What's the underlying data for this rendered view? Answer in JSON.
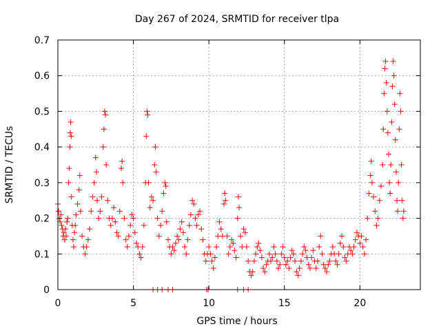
{
  "chart_data": {
    "type": "scatter",
    "title": "Day 267 of 2024, SRMTID for receiver tlpa",
    "xlabel": "GPS time / hours",
    "ylabel": "SRMTID / TECUs",
    "xlim": [
      0,
      24
    ],
    "ylim": [
      0,
      0.7
    ],
    "x_ticks": [
      0,
      5,
      10,
      15,
      20
    ],
    "x_tick_labels": [
      "0",
      "5",
      "10",
      "15",
      "20"
    ],
    "y_ticks": [
      0,
      0.1,
      0.2,
      0.3,
      0.4,
      0.5,
      0.6,
      0.7
    ],
    "y_tick_labels": [
      "0",
      "0.1",
      "0.2",
      "0.3",
      "0.4",
      "0.5",
      "0.6",
      "0.7"
    ],
    "grid": true,
    "marker": "+",
    "colors": {
      "points": "#ee0000",
      "grid": "#a0a0a0",
      "axes": "#000000"
    },
    "series": [
      {
        "name": "SRMTID",
        "points": [
          [
            0.0,
            0.24
          ],
          [
            0.05,
            0.22
          ],
          [
            0.1,
            0.2
          ],
          [
            0.15,
            0.19
          ],
          [
            0.2,
            0.21
          ],
          [
            0.25,
            0.18
          ],
          [
            0.3,
            0.17
          ],
          [
            0.35,
            0.15
          ],
          [
            0.4,
            0.16
          ],
          [
            0.45,
            0.14
          ],
          [
            0.5,
            0.17
          ],
          [
            0.55,
            0.15
          ],
          [
            0.6,
            0.19
          ],
          [
            0.65,
            0.2
          ],
          [
            0.7,
            0.3
          ],
          [
            0.75,
            0.34
          ],
          [
            0.8,
            0.4
          ],
          [
            0.82,
            0.44
          ],
          [
            0.85,
            0.47
          ],
          [
            0.88,
            0.43
          ],
          [
            0.9,
            0.26
          ],
          [
            0.95,
            0.18
          ],
          [
            1.0,
            0.14
          ],
          [
            1.05,
            0.12
          ],
          [
            1.1,
            0.16
          ],
          [
            1.15,
            0.18
          ],
          [
            1.2,
            0.21
          ],
          [
            1.3,
            0.24
          ],
          [
            1.4,
            0.28
          ],
          [
            1.45,
            0.32
          ],
          [
            1.5,
            0.22
          ],
          [
            1.6,
            0.15
          ],
          [
            1.7,
            0.12
          ],
          [
            1.8,
            0.1
          ],
          [
            1.9,
            0.12
          ],
          [
            2.0,
            0.14
          ],
          [
            2.1,
            0.17
          ],
          [
            2.2,
            0.22
          ],
          [
            2.3,
            0.26
          ],
          [
            2.4,
            0.3
          ],
          [
            2.5,
            0.37
          ],
          [
            2.55,
            0.33
          ],
          [
            2.6,
            0.25
          ],
          [
            2.7,
            0.2
          ],
          [
            2.8,
            0.22
          ],
          [
            2.9,
            0.26
          ],
          [
            3.0,
            0.4
          ],
          [
            3.05,
            0.45
          ],
          [
            3.1,
            0.5
          ],
          [
            3.15,
            0.49
          ],
          [
            3.2,
            0.35
          ],
          [
            3.3,
            0.25
          ],
          [
            3.4,
            0.2
          ],
          [
            3.5,
            0.18
          ],
          [
            3.6,
            0.2
          ],
          [
            3.7,
            0.23
          ],
          [
            3.8,
            0.19
          ],
          [
            3.9,
            0.16
          ],
          [
            4.0,
            0.15
          ],
          [
            4.1,
            0.22
          ],
          [
            4.2,
            0.34
          ],
          [
            4.25,
            0.36
          ],
          [
            4.3,
            0.3
          ],
          [
            4.4,
            0.2
          ],
          [
            4.5,
            0.14
          ],
          [
            4.6,
            0.12
          ],
          [
            4.7,
            0.15
          ],
          [
            4.8,
            0.18
          ],
          [
            4.9,
            0.21
          ],
          [
            5.0,
            0.2
          ],
          [
            5.1,
            0.16
          ],
          [
            5.2,
            0.13
          ],
          [
            5.3,
            0.12
          ],
          [
            5.4,
            0.1
          ],
          [
            5.5,
            0.09
          ],
          [
            5.6,
            0.12
          ],
          [
            5.7,
            0.18
          ],
          [
            5.8,
            0.3
          ],
          [
            5.85,
            0.43
          ],
          [
            5.9,
            0.5
          ],
          [
            5.95,
            0.49
          ],
          [
            6.0,
            0.3
          ],
          [
            6.1,
            0.23
          ],
          [
            6.2,
            0.26
          ],
          [
            6.3,
            0.25
          ],
          [
            6.4,
            0.35
          ],
          [
            6.45,
            0.4
          ],
          [
            6.5,
            0.33
          ],
          [
            6.6,
            0.2
          ],
          [
            6.7,
            0.15
          ],
          [
            6.8,
            0.18
          ],
          [
            6.9,
            0.22
          ],
          [
            7.0,
            0.27
          ],
          [
            7.1,
            0.3
          ],
          [
            7.15,
            0.29
          ],
          [
            7.2,
            0.19
          ],
          [
            7.3,
            0.14
          ],
          [
            7.4,
            0.12
          ],
          [
            7.5,
            0.1
          ],
          [
            7.6,
            0.12
          ],
          [
            7.7,
            0.11
          ],
          [
            7.8,
            0.13
          ],
          [
            7.9,
            0.15
          ],
          [
            8.0,
            0.14
          ],
          [
            8.1,
            0.17
          ],
          [
            8.2,
            0.19
          ],
          [
            8.3,
            0.16
          ],
          [
            8.4,
            0.12
          ],
          [
            8.5,
            0.1
          ],
          [
            8.6,
            0.14
          ],
          [
            8.7,
            0.18
          ],
          [
            8.8,
            0.21
          ],
          [
            8.9,
            0.25
          ],
          [
            9.0,
            0.24
          ],
          [
            9.1,
            0.2
          ],
          [
            9.2,
            0.18
          ],
          [
            9.3,
            0.21
          ],
          [
            9.4,
            0.22
          ],
          [
            9.5,
            0.17
          ],
          [
            9.6,
            0.14
          ],
          [
            9.7,
            0.1
          ],
          [
            9.8,
            0.08
          ],
          [
            9.9,
            0.1
          ],
          [
            10.0,
            0.12
          ],
          [
            10.1,
            0.1
          ],
          [
            10.2,
            0.08
          ],
          [
            10.3,
            0.06
          ],
          [
            10.4,
            0.09
          ],
          [
            10.5,
            0.12
          ],
          [
            10.6,
            0.15
          ],
          [
            10.7,
            0.19
          ],
          [
            10.8,
            0.17
          ],
          [
            10.9,
            0.15
          ],
          [
            11.0,
            0.24
          ],
          [
            11.05,
            0.27
          ],
          [
            11.1,
            0.25
          ],
          [
            11.2,
            0.15
          ],
          [
            11.3,
            0.1
          ],
          [
            11.4,
            0.12
          ],
          [
            11.5,
            0.14
          ],
          [
            11.6,
            0.13
          ],
          [
            11.7,
            0.11
          ],
          [
            11.8,
            0.09
          ],
          [
            11.9,
            0.2
          ],
          [
            11.95,
            0.26
          ],
          [
            12.0,
            0.23
          ],
          [
            12.1,
            0.15
          ],
          [
            12.2,
            0.12
          ],
          [
            12.3,
            0.17
          ],
          [
            12.4,
            0.16
          ],
          [
            12.5,
            0.12
          ],
          [
            12.6,
            0.08
          ],
          [
            12.7,
            0.05
          ],
          [
            12.8,
            0.04
          ],
          [
            12.9,
            0.05
          ],
          [
            13.0,
            0.08
          ],
          [
            13.1,
            0.1
          ],
          [
            13.2,
            0.12
          ],
          [
            13.3,
            0.13
          ],
          [
            13.4,
            0.11
          ],
          [
            13.5,
            0.09
          ],
          [
            13.6,
            0.06
          ],
          [
            13.7,
            0.05
          ],
          [
            13.8,
            0.07
          ],
          [
            13.9,
            0.08
          ],
          [
            14.0,
            0.1
          ],
          [
            14.1,
            0.08
          ],
          [
            14.2,
            0.09
          ],
          [
            14.3,
            0.12
          ],
          [
            14.4,
            0.1
          ],
          [
            14.5,
            0.08
          ],
          [
            14.6,
            0.06
          ],
          [
            14.7,
            0.07
          ],
          [
            14.8,
            0.1
          ],
          [
            14.9,
            0.12
          ],
          [
            15.0,
            0.09
          ],
          [
            15.1,
            0.07
          ],
          [
            15.2,
            0.08
          ],
          [
            15.3,
            0.06
          ],
          [
            15.4,
            0.09
          ],
          [
            15.5,
            0.11
          ],
          [
            15.6,
            0.1
          ],
          [
            15.7,
            0.08
          ],
          [
            15.8,
            0.05
          ],
          [
            15.9,
            0.04
          ],
          [
            16.0,
            0.06
          ],
          [
            16.1,
            0.08
          ],
          [
            16.2,
            0.1
          ],
          [
            16.3,
            0.12
          ],
          [
            16.4,
            0.11
          ],
          [
            16.5,
            0.09
          ],
          [
            16.6,
            0.07
          ],
          [
            16.7,
            0.06
          ],
          [
            16.8,
            0.09
          ],
          [
            16.9,
            0.11
          ],
          [
            17.0,
            0.08
          ],
          [
            17.1,
            0.06
          ],
          [
            17.2,
            0.08
          ],
          [
            17.3,
            0.12
          ],
          [
            17.4,
            0.15
          ],
          [
            17.5,
            0.1
          ],
          [
            17.6,
            0.07
          ],
          [
            17.7,
            0.06
          ],
          [
            17.8,
            0.05
          ],
          [
            17.9,
            0.07
          ],
          [
            18.0,
            0.08
          ],
          [
            18.1,
            0.1
          ],
          [
            18.2,
            0.12
          ],
          [
            18.3,
            0.1
          ],
          [
            18.4,
            0.08
          ],
          [
            18.5,
            0.07
          ],
          [
            18.6,
            0.1
          ],
          [
            18.7,
            0.13
          ],
          [
            18.8,
            0.15
          ],
          [
            18.9,
            0.12
          ],
          [
            19.0,
            0.09
          ],
          [
            19.1,
            0.08
          ],
          [
            19.2,
            0.1
          ],
          [
            19.3,
            0.12
          ],
          [
            19.4,
            0.11
          ],
          [
            19.5,
            0.1
          ],
          [
            19.6,
            0.12
          ],
          [
            19.7,
            0.14
          ],
          [
            19.8,
            0.16
          ],
          [
            19.9,
            0.15
          ],
          [
            20.0,
            0.13
          ],
          [
            20.1,
            0.15
          ],
          [
            20.2,
            0.12
          ],
          [
            20.3,
            0.1
          ],
          [
            20.4,
            0.14
          ],
          [
            20.5,
            0.2
          ],
          [
            20.6,
            0.27
          ],
          [
            20.7,
            0.32
          ],
          [
            20.75,
            0.36
          ],
          [
            20.8,
            0.3
          ],
          [
            20.9,
            0.26
          ],
          [
            21.0,
            0.22
          ],
          [
            21.1,
            0.18
          ],
          [
            21.2,
            0.2
          ],
          [
            21.3,
            0.25
          ],
          [
            21.4,
            0.29
          ],
          [
            21.5,
            0.35
          ],
          [
            21.55,
            0.45
          ],
          [
            21.6,
            0.55
          ],
          [
            21.65,
            0.62
          ],
          [
            21.7,
            0.64
          ],
          [
            21.75,
            0.58
          ],
          [
            21.8,
            0.5
          ],
          [
            21.85,
            0.44
          ],
          [
            21.9,
            0.38
          ],
          [
            21.95,
            0.3
          ],
          [
            22.0,
            0.27
          ],
          [
            22.05,
            0.35
          ],
          [
            22.1,
            0.47
          ],
          [
            22.15,
            0.57
          ],
          [
            22.2,
            0.64
          ],
          [
            22.25,
            0.6
          ],
          [
            22.3,
            0.52
          ],
          [
            22.35,
            0.42
          ],
          [
            22.4,
            0.33
          ],
          [
            22.45,
            0.25
          ],
          [
            22.5,
            0.22
          ],
          [
            22.55,
            0.3
          ],
          [
            22.6,
            0.45
          ],
          [
            22.65,
            0.55
          ],
          [
            22.7,
            0.5
          ],
          [
            22.75,
            0.35
          ],
          [
            22.8,
            0.25
          ],
          [
            22.85,
            0.2
          ],
          [
            22.9,
            0.22
          ]
        ],
        "zero_points_x": [
          6.3,
          6.6,
          6.9,
          7.3,
          7.6,
          9.85,
          9.95,
          11.9,
          12.3,
          12.6
        ]
      }
    ]
  }
}
